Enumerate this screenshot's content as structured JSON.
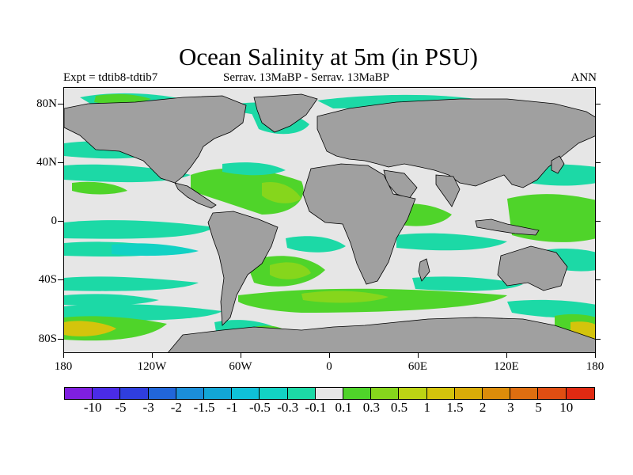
{
  "title": "Ocean Salinity at 5m (in PSU)",
  "subtitle_left": "Expt = tdtib8-tdtib7",
  "subtitle_center": "Serrav.   13MaBP - Serrav.   13MaBP",
  "subtitle_right": "ANN",
  "lat_labels": [
    "80N",
    "40N",
    "0",
    "40S",
    "80S"
  ],
  "lon_labels": [
    "180",
    "120W",
    "60W",
    "0",
    "60E",
    "120E",
    "180"
  ],
  "colorbar": {
    "colors": [
      "#7f1fe0",
      "#4a2be6",
      "#2f3ede",
      "#2166d9",
      "#1b8ed9",
      "#12a6d6",
      "#0fc0d8",
      "#12d2c4",
      "#1cd9a6",
      "#e6e6e6",
      "#4fd42a",
      "#86d61c",
      "#bcd414",
      "#d4c40c",
      "#d8ac08",
      "#dc8c0a",
      "#de6e10",
      "#e04e12",
      "#e02a12"
    ],
    "labels": [
      "-10",
      "-5",
      "-3",
      "-2",
      "-1.5",
      "-1",
      "-0.5",
      "-0.3",
      "-0.1",
      "0.1",
      "0.3",
      "0.5",
      "1",
      "1.5",
      "2",
      "3",
      "5",
      "10"
    ]
  },
  "colors": {
    "land": "#a0a0a0",
    "ocean_neutral": "#e6e6e6",
    "pos_small": "#4fd42a",
    "pos_mid": "#86d61c",
    "pos_high": "#bcd414",
    "pos_higher": "#d4c40c",
    "neg_small": "#1cd9a6",
    "neg_mid": "#12d2c4",
    "neg_more": "#0fc0d8"
  }
}
